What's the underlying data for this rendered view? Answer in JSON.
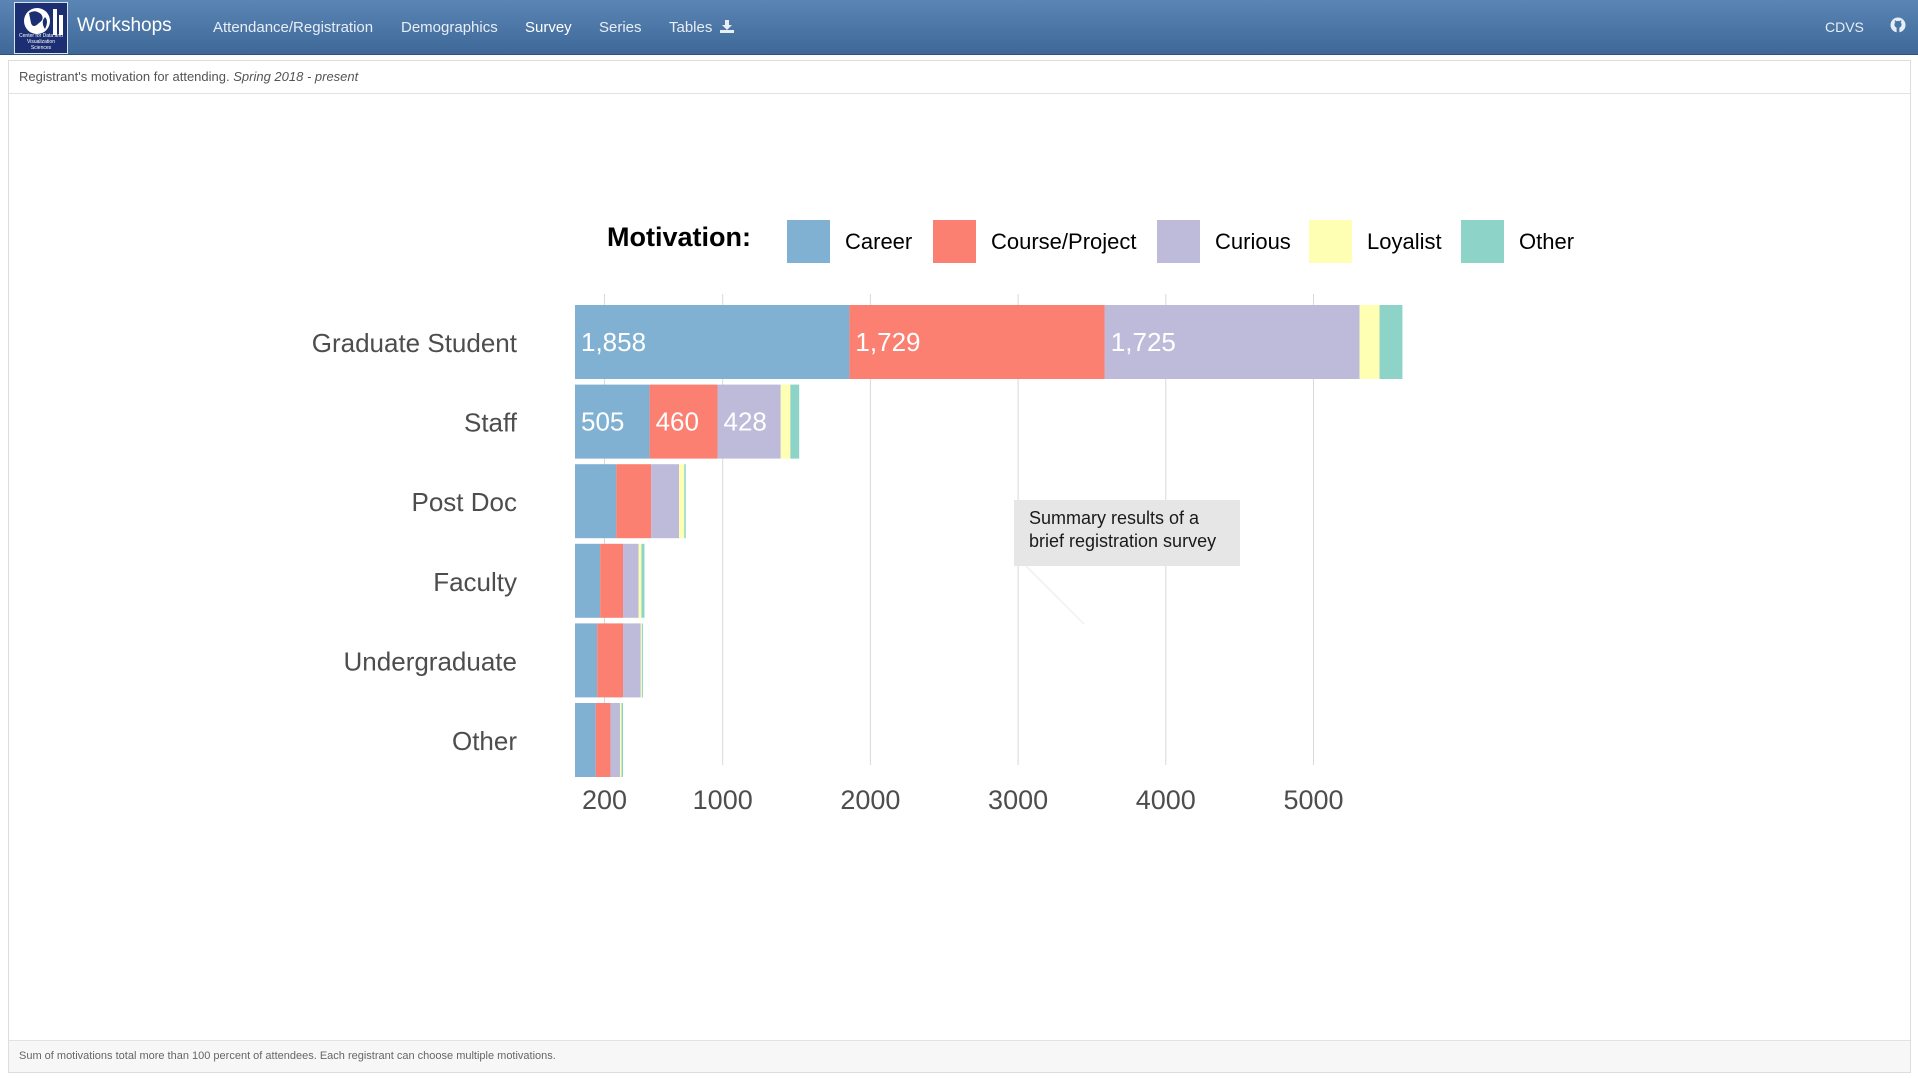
{
  "nav": {
    "brand": "Workshops",
    "logo_text": "Center for Data and Visualization Sciences",
    "items": [
      {
        "label": "Attendance/Registration",
        "active": false
      },
      {
        "label": "Demographics",
        "active": false
      },
      {
        "label": "Survey",
        "active": true
      },
      {
        "label": "Series",
        "active": false
      },
      {
        "label": "Tables",
        "active": false,
        "icon": "download-icon"
      }
    ],
    "right_label": "CDVS",
    "right_icon": "github-icon"
  },
  "panel": {
    "title": "Registrant's motivation for attending.",
    "title_period": "Spring 2018 - present",
    "footer": "Sum of motivations total more than 100 percent of attendees. Each registrant can choose multiple motivations."
  },
  "chart_data": {
    "type": "bar",
    "orientation": "horizontal",
    "stacked": true,
    "legend_title": "Motivation:",
    "legend_position": "top",
    "categories": [
      "Graduate Student",
      "Staff",
      "Post Doc",
      "Faculty",
      "Undergraduate",
      "Other"
    ],
    "series": [
      {
        "name": "Career",
        "color": "#80b1d3",
        "values": [
          1858,
          505,
          280,
          170,
          150,
          140
        ]
      },
      {
        "name": "Course/Project",
        "color": "#fb8072",
        "values": [
          1729,
          460,
          235,
          155,
          175,
          100
        ]
      },
      {
        "name": "Curious",
        "color": "#bebada",
        "values": [
          1725,
          428,
          190,
          105,
          120,
          65
        ]
      },
      {
        "name": "Loyalist",
        "color": "#ffffb3",
        "values": [
          135,
          65,
          35,
          20,
          8,
          10
        ]
      },
      {
        "name": "Other",
        "color": "#8dd3c7",
        "values": [
          155,
          60,
          10,
          20,
          7,
          10
        ]
      }
    ],
    "data_labels": [
      [
        "1,858",
        "1,729",
        "1,725",
        "",
        ""
      ],
      [
        "505",
        "460",
        "428",
        "",
        ""
      ],
      [
        "",
        "",
        "",
        "",
        ""
      ],
      [
        "",
        "",
        "",
        "",
        ""
      ],
      [
        "",
        "",
        "",
        "",
        ""
      ],
      [
        "",
        "",
        "",
        "",
        ""
      ]
    ],
    "x_ticks": [
      200,
      1000,
      2000,
      3000,
      4000,
      5000
    ],
    "xlim": [
      0,
      5750
    ],
    "grid": true,
    "annotation": {
      "lines": [
        "Summary results of a",
        "brief registration survey"
      ]
    }
  }
}
